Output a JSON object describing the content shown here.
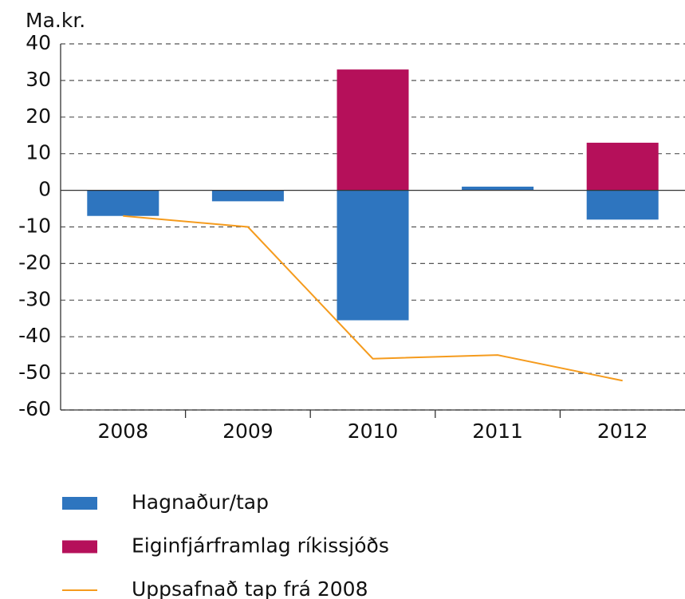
{
  "chart_data": {
    "type": "bar",
    "stacked": true,
    "y_label": "Ma.kr.",
    "categories": [
      "2008",
      "2009",
      "2010",
      "2011",
      "2012"
    ],
    "series": [
      {
        "name": "Hagnaður/tap",
        "color": "#2e75bf",
        "values": [
          -7,
          -3,
          -35.5,
          1,
          -8
        ]
      },
      {
        "name": "Eiginfjárframlag ríkissjóðs",
        "color": "#b5105a",
        "values": [
          0,
          0,
          33,
          0,
          13
        ]
      },
      {
        "name": "Uppsafnað tap frá 2008",
        "color": "#f59b1d",
        "type": "line",
        "values": [
          -7,
          -10,
          -46,
          -45,
          -52
        ]
      }
    ],
    "ylim": [
      -60,
      40
    ],
    "yticks": [
      -60,
      -50,
      -40,
      -30,
      -20,
      -10,
      0,
      10,
      20,
      30,
      40
    ],
    "grid": true,
    "legend": "bottom"
  }
}
